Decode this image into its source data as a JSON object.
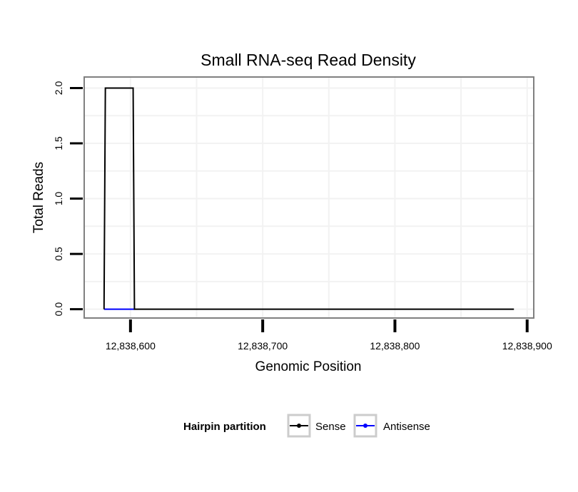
{
  "chart_data": {
    "type": "line",
    "title": "Small RNA-seq Read Density",
    "xlabel": "Genomic Position",
    "ylabel": "Total Reads",
    "xlim": [
      12838565,
      12838905
    ],
    "ylim": [
      -0.08,
      2.1
    ],
    "x_ticks": [
      12838600,
      12838700,
      12838800,
      12838900
    ],
    "x_tick_labels": [
      "12,838,600",
      "12,838,700",
      "12,838,800",
      "12,838,900"
    ],
    "y_ticks": [
      0.0,
      0.5,
      1.0,
      1.5,
      2.0
    ],
    "y_tick_labels": [
      "0.0",
      "0.5",
      "1.0",
      "1.5",
      "2.0"
    ],
    "grid": true,
    "legend": {
      "title": "Hairpin partition",
      "position": "bottom",
      "entries": [
        "Sense",
        "Antisense"
      ]
    },
    "series": [
      {
        "name": "Sense",
        "color": "#000000",
        "x": [
          12838580,
          12838581,
          12838582,
          12838602,
          12838603,
          12838890
        ],
        "y": [
          0,
          2,
          2,
          2,
          0,
          0
        ]
      },
      {
        "name": "Antisense",
        "color": "#0000ff",
        "x": [
          12838580,
          12838603
        ],
        "y": [
          0,
          0
        ]
      }
    ]
  }
}
